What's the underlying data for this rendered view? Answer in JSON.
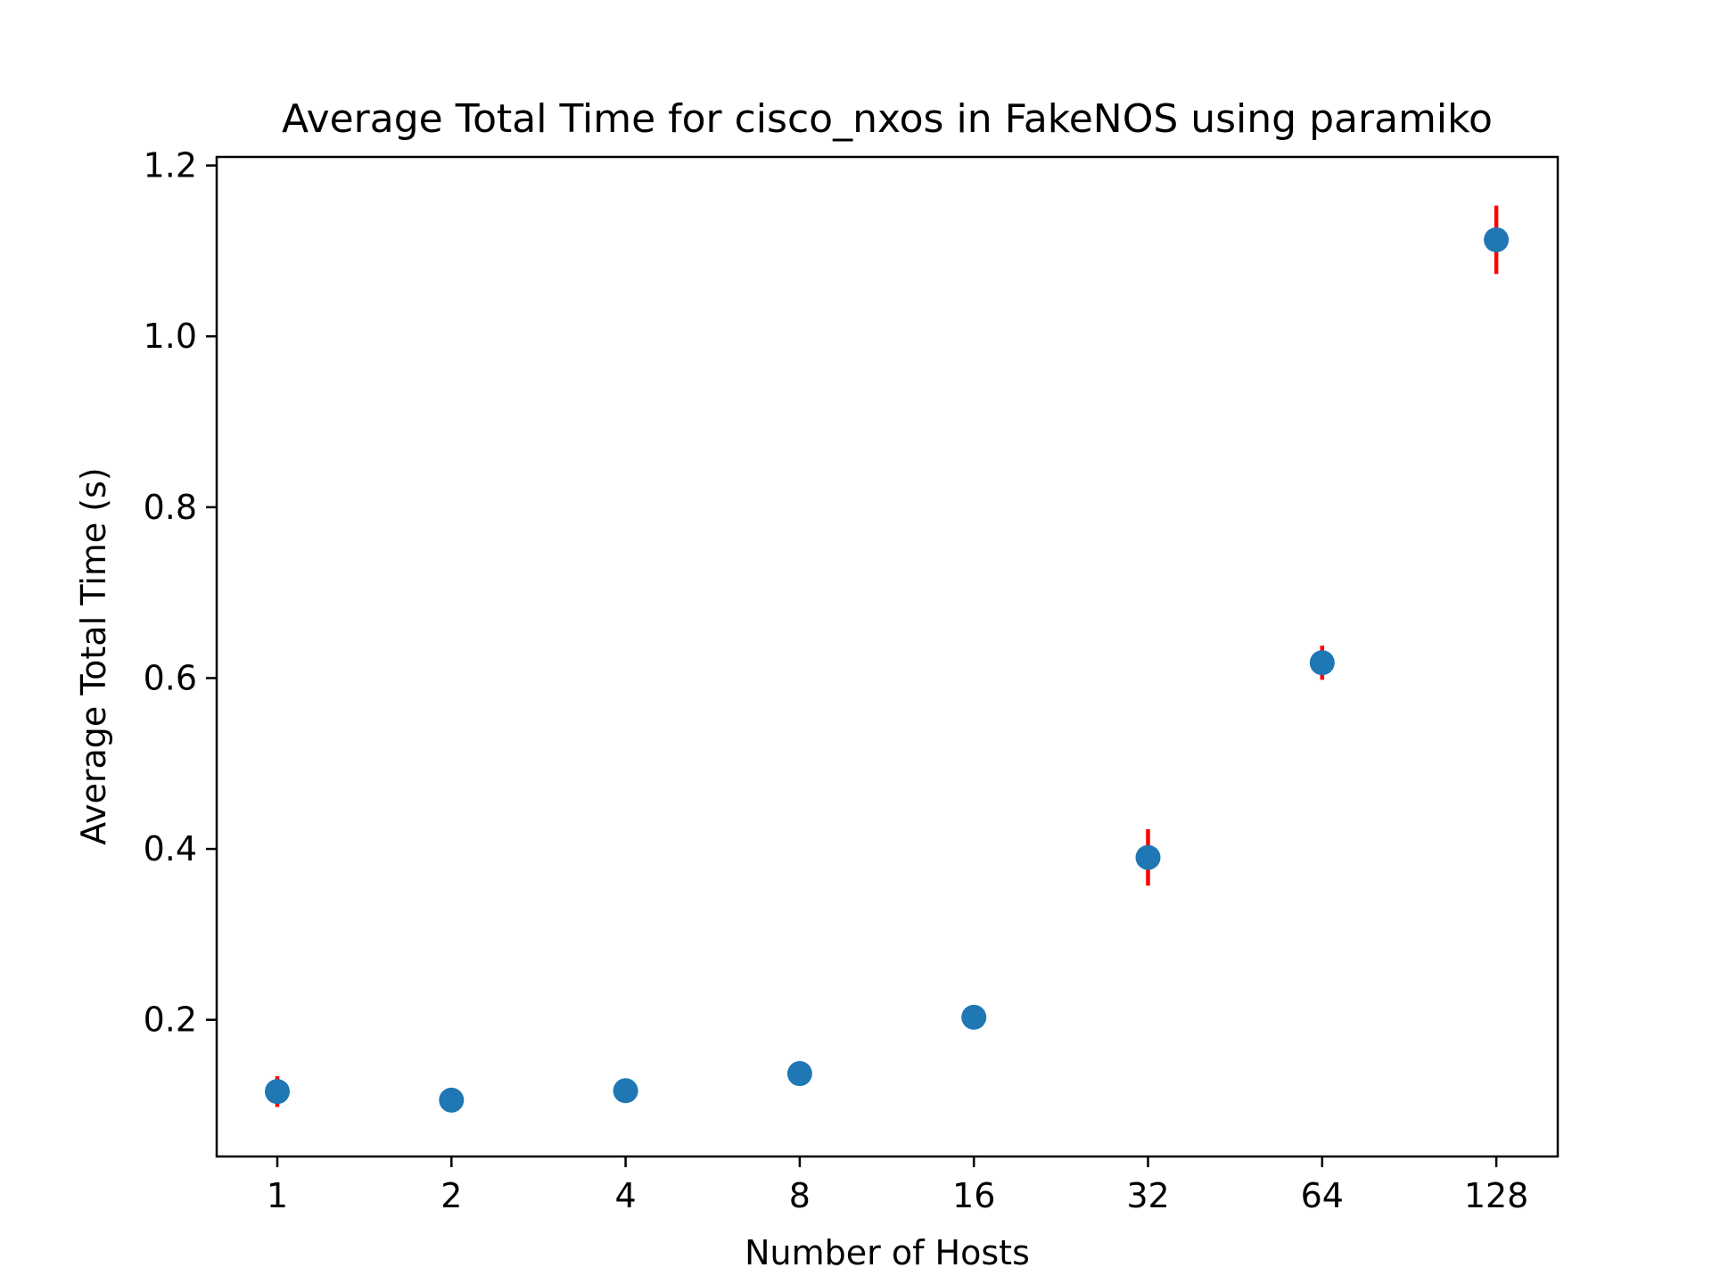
{
  "chart_data": {
    "type": "scatter",
    "title": "Average Total Time for cisco_nxos in FakeNOS using paramiko",
    "xlabel": "Number of Hosts",
    "ylabel": "Average Total Time (s)",
    "x_scale": "log2",
    "x": [
      1,
      2,
      4,
      8,
      16,
      32,
      64,
      128
    ],
    "x_tick_labels": [
      "1",
      "2",
      "4",
      "8",
      "16",
      "32",
      "64",
      "128"
    ],
    "y_ticks": [
      0.2,
      0.4,
      0.6,
      0.8,
      1.0,
      1.2
    ],
    "y_tick_labels": [
      "0.2",
      "0.4",
      "0.6",
      "0.8",
      "1.0",
      "1.2"
    ],
    "ylim": [
      0.04,
      1.21
    ],
    "series": [
      {
        "name": "Average Total Time",
        "values": [
          0.116,
          0.106,
          0.117,
          0.137,
          0.203,
          0.39,
          0.618,
          1.113
        ],
        "error": [
          0.018,
          0.004,
          0.006,
          0.006,
          0.005,
          0.033,
          0.02,
          0.04
        ]
      }
    ],
    "grid": false,
    "colors": {
      "marker": "#1f77b4",
      "error_bar": "#ff0000",
      "axes": "#000000"
    }
  }
}
